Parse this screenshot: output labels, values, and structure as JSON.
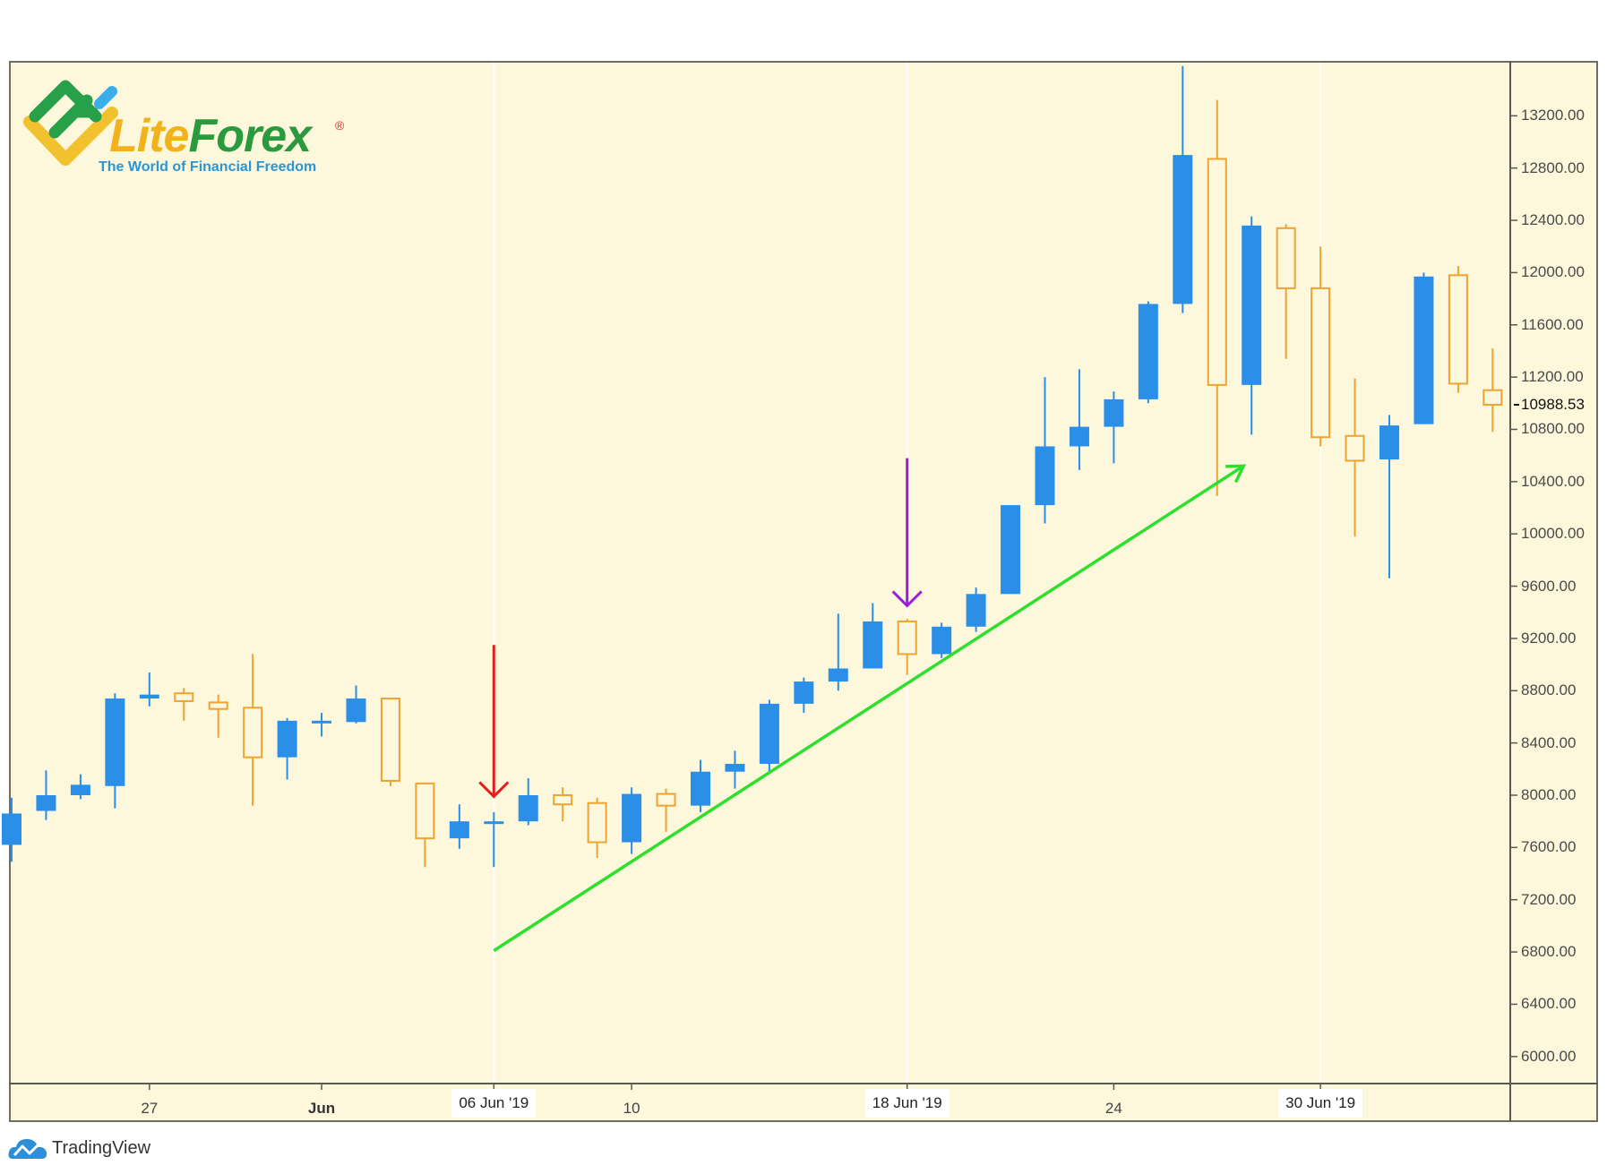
{
  "branding": {
    "logo_word1": "Lite",
    "logo_word2": "Forex",
    "logo_registered": "®",
    "logo_tagline": "The World of Financial Freedom",
    "footer_brand": "TradingView"
  },
  "colors": {
    "background": "#fdf7dc",
    "up_candle": "#2b8fe8",
    "down_candle": "#eea431",
    "red_arrow": "#e02020",
    "purple_arrow": "#9a1fd6",
    "trend_line": "#2ee02e"
  },
  "price_axis": {
    "ticks": [
      "13200.00",
      "12800.00",
      "12400.00",
      "12000.00",
      "11600.00",
      "11200.00",
      "10800.00",
      "10400.00",
      "10000.00",
      "9600.00",
      "9200.00",
      "8800.00",
      "8400.00",
      "8000.00",
      "7600.00",
      "7200.00",
      "6800.00",
      "6400.00",
      "6000.00"
    ],
    "last_price": "10988.53"
  },
  "time_axis": {
    "labels": [
      {
        "text": "27",
        "index": 4,
        "style": "normal"
      },
      {
        "text": "Jun",
        "index": 9,
        "style": "bold"
      },
      {
        "text": "06 Jun '19",
        "index": 14,
        "style": "boxed"
      },
      {
        "text": "10",
        "index": 18,
        "style": "normal"
      },
      {
        "text": "18 Jun '19",
        "index": 26,
        "style": "boxed"
      },
      {
        "text": "24",
        "index": 32,
        "style": "normal"
      },
      {
        "text": "30 Jun '19",
        "index": 38,
        "style": "boxed"
      }
    ]
  },
  "annotations": {
    "red_arrow": {
      "index": 14,
      "from_price": 9150,
      "to_price": 7990
    },
    "purple_arrow": {
      "index": 26,
      "from_price": 10580,
      "to_price": 9450
    },
    "trend_line": {
      "from_index": 14,
      "from_price": 6810,
      "to_index": 36,
      "to_price": 10520
    }
  },
  "chart_data": {
    "type": "candlestick",
    "title": "",
    "xlabel": "",
    "ylabel": "",
    "ylim": [
      5800,
      13600
    ],
    "grid": "vertical lines at 06 Jun, 18 Jun, 30 Jun",
    "legend": "none",
    "last_price": 10988.53,
    "x": [
      "23 May",
      "24 May",
      "25 May",
      "26 May",
      "27 May",
      "28 May",
      "29 May",
      "30 May",
      "31 May",
      "01 Jun",
      "02 Jun",
      "03 Jun",
      "04 Jun",
      "05 Jun",
      "06 Jun",
      "07 Jun",
      "08 Jun",
      "09 Jun",
      "10 Jun",
      "11 Jun",
      "12 Jun",
      "13 Jun",
      "14 Jun",
      "15 Jun",
      "16 Jun",
      "17 Jun",
      "18 Jun",
      "19 Jun",
      "20 Jun",
      "21 Jun",
      "22 Jun",
      "23 Jun",
      "24 Jun",
      "25 Jun",
      "26 Jun",
      "27 Jun",
      "28 Jun",
      "29 Jun",
      "30 Jun",
      "01 Jul",
      "02 Jul",
      "03 Jul",
      "04 Jul",
      "05 Jul"
    ],
    "open": [
      7620,
      7880,
      8000,
      8070,
      8740,
      8780,
      8710,
      8670,
      8290,
      8560,
      8560,
      8740,
      8090,
      7670,
      7780,
      7800,
      8000,
      7940,
      7640,
      8010,
      7920,
      8180,
      8240,
      8700,
      8870,
      8970,
      9330,
      9080,
      9290,
      9540,
      10220,
      10670,
      10820,
      11030,
      11760,
      12870,
      11140,
      12340,
      11880,
      10750,
      10570,
      10840,
      11980,
      11100
    ],
    "high": [
      7980,
      8190,
      8160,
      8780,
      8940,
      8820,
      8770,
      9080,
      8590,
      8630,
      8840,
      8740,
      8090,
      7930,
      7870,
      8130,
      8060,
      7980,
      8060,
      8050,
      8270,
      8340,
      8730,
      8900,
      9390,
      9470,
      9350,
      9320,
      9590,
      10220,
      11200,
      11260,
      11090,
      11780,
      13580,
      13320,
      12430,
      12370,
      12200,
      11190,
      10910,
      12000,
      12050,
      11420
    ],
    "low": [
      7490,
      7810,
      7970,
      7900,
      8680,
      8570,
      8440,
      7920,
      8120,
      8450,
      8550,
      8070,
      7450,
      7590,
      7450,
      7770,
      7800,
      7520,
      7550,
      7720,
      7870,
      8050,
      8180,
      8630,
      8800,
      8970,
      8920,
      9050,
      9250,
      9540,
      10080,
      10490,
      10540,
      11000,
      11690,
      10290,
      10760,
      11340,
      10670,
      9980,
      9660,
      10840,
      11080,
      10780
    ],
    "close": [
      7860,
      8000,
      8080,
      8740,
      8770,
      8720,
      8660,
      8290,
      8570,
      8570,
      8740,
      8110,
      7670,
      7800,
      7800,
      8000,
      7930,
      7640,
      8010,
      7920,
      8180,
      8240,
      8700,
      8870,
      8970,
      9330,
      9080,
      9290,
      9540,
      10220,
      10670,
      10820,
      11030,
      11760,
      12900,
      11140,
      12360,
      11880,
      10740,
      10560,
      10830,
      11970,
      11150,
      10988.53
    ]
  }
}
